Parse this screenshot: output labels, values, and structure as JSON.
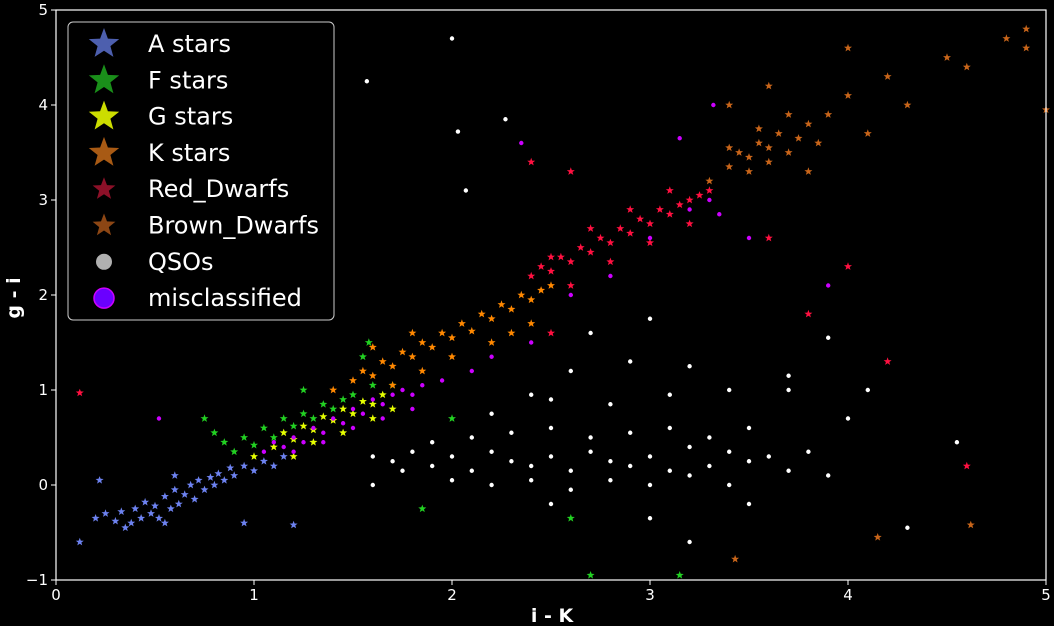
{
  "chart_data": {
    "type": "scatter",
    "title": "",
    "xlabel": "i - K",
    "ylabel": "g - i",
    "xlim": [
      0,
      5
    ],
    "ylim": [
      -1,
      5
    ],
    "x_ticks": [
      "0",
      "1",
      "2",
      "3",
      "4",
      "5"
    ],
    "y_ticks": [
      "−1",
      "0",
      "1",
      "2",
      "3",
      "4",
      "5"
    ],
    "grid": false,
    "legend_position": "top-left",
    "background": "#000000",
    "series": [
      {
        "name": "A stars",
        "color": "#6d82f0",
        "legend_color": "#4d5fae",
        "marker": "star",
        "points": [
          [
            0.12,
            -0.6
          ],
          [
            0.2,
            -0.35
          ],
          [
            0.25,
            -0.3
          ],
          [
            0.3,
            -0.38
          ],
          [
            0.33,
            -0.28
          ],
          [
            0.38,
            -0.4
          ],
          [
            0.4,
            -0.25
          ],
          [
            0.43,
            -0.35
          ],
          [
            0.45,
            -0.18
          ],
          [
            0.48,
            -0.3
          ],
          [
            0.5,
            -0.22
          ],
          [
            0.52,
            -0.35
          ],
          [
            0.55,
            -0.12
          ],
          [
            0.58,
            -0.25
          ],
          [
            0.6,
            -0.05
          ],
          [
            0.62,
            -0.2
          ],
          [
            0.65,
            -0.1
          ],
          [
            0.68,
            0.0
          ],
          [
            0.7,
            -0.15
          ],
          [
            0.72,
            0.05
          ],
          [
            0.75,
            -0.05
          ],
          [
            0.78,
            0.08
          ],
          [
            0.8,
            0.0
          ],
          [
            0.82,
            0.12
          ],
          [
            0.85,
            0.05
          ],
          [
            0.88,
            0.18
          ],
          [
            0.9,
            0.1
          ],
          [
            0.95,
            0.2
          ],
          [
            1.0,
            0.15
          ],
          [
            1.05,
            0.25
          ],
          [
            1.1,
            0.2
          ],
          [
            0.35,
            -0.45
          ],
          [
            0.55,
            -0.4
          ],
          [
            0.95,
            -0.4
          ],
          [
            1.2,
            -0.42
          ],
          [
            0.22,
            0.05
          ],
          [
            0.6,
            0.1
          ],
          [
            1.15,
            0.3
          ]
        ]
      },
      {
        "name": "F stars",
        "color": "#22d022",
        "legend_color": "#1a8f1a",
        "marker": "star",
        "points": [
          [
            0.8,
            0.55
          ],
          [
            0.85,
            0.45
          ],
          [
            0.9,
            0.35
          ],
          [
            0.95,
            0.5
          ],
          [
            1.0,
            0.42
          ],
          [
            1.05,
            0.6
          ],
          [
            1.1,
            0.5
          ],
          [
            1.15,
            0.7
          ],
          [
            1.2,
            0.62
          ],
          [
            1.25,
            0.75
          ],
          [
            1.3,
            0.7
          ],
          [
            1.35,
            0.85
          ],
          [
            1.4,
            0.8
          ],
          [
            1.45,
            0.9
          ],
          [
            1.5,
            0.95
          ],
          [
            0.75,
            0.7
          ],
          [
            1.6,
            1.05
          ],
          [
            1.55,
            1.35
          ],
          [
            1.58,
            1.5
          ],
          [
            1.7,
            1.05
          ],
          [
            2.6,
            -0.35
          ],
          [
            2.7,
            -0.95
          ],
          [
            3.15,
            -0.95
          ],
          [
            1.85,
            -0.25
          ],
          [
            2.0,
            0.7
          ],
          [
            1.25,
            1.0
          ]
        ]
      },
      {
        "name": "G stars",
        "color": "#e6ff00",
        "legend_color": "#ccdd00",
        "marker": "star",
        "points": [
          [
            1.1,
            0.4
          ],
          [
            1.15,
            0.55
          ],
          [
            1.2,
            0.48
          ],
          [
            1.25,
            0.62
          ],
          [
            1.3,
            0.58
          ],
          [
            1.35,
            0.72
          ],
          [
            1.4,
            0.68
          ],
          [
            1.45,
            0.8
          ],
          [
            1.5,
            0.75
          ],
          [
            1.55,
            0.88
          ],
          [
            1.6,
            0.85
          ],
          [
            1.65,
            0.95
          ],
          [
            1.2,
            0.3
          ],
          [
            1.3,
            0.45
          ],
          [
            1.45,
            0.55
          ],
          [
            1.6,
            0.7
          ],
          [
            1.7,
            0.8
          ],
          [
            1.0,
            0.3
          ]
        ]
      },
      {
        "name": "K stars",
        "color": "#ff8800",
        "legend_color": "#a85a14",
        "marker": "star",
        "points": [
          [
            1.4,
            1.0
          ],
          [
            1.5,
            1.1
          ],
          [
            1.55,
            1.2
          ],
          [
            1.6,
            1.15
          ],
          [
            1.65,
            1.3
          ],
          [
            1.7,
            1.25
          ],
          [
            1.75,
            1.4
          ],
          [
            1.8,
            1.35
          ],
          [
            1.85,
            1.5
          ],
          [
            1.9,
            1.45
          ],
          [
            1.95,
            1.6
          ],
          [
            2.0,
            1.55
          ],
          [
            2.05,
            1.7
          ],
          [
            2.1,
            1.62
          ],
          [
            2.15,
            1.8
          ],
          [
            2.2,
            1.75
          ],
          [
            2.25,
            1.9
          ],
          [
            2.3,
            1.85
          ],
          [
            2.35,
            2.0
          ],
          [
            2.4,
            1.95
          ],
          [
            2.45,
            2.05
          ],
          [
            1.85,
            1.2
          ],
          [
            2.0,
            1.35
          ],
          [
            2.2,
            1.5
          ],
          [
            2.3,
            1.6
          ],
          [
            2.4,
            1.7
          ],
          [
            1.7,
            1.05
          ],
          [
            2.5,
            2.1
          ],
          [
            1.6,
            1.45
          ],
          [
            1.8,
            1.6
          ]
        ]
      },
      {
        "name": "Red_Dwarfs",
        "color": "#ff1040",
        "legend_color": "#8c1028",
        "marker": "star",
        "points": [
          [
            2.4,
            2.2
          ],
          [
            2.45,
            2.3
          ],
          [
            2.5,
            2.25
          ],
          [
            2.55,
            2.4
          ],
          [
            2.6,
            2.35
          ],
          [
            2.65,
            2.5
          ],
          [
            2.7,
            2.45
          ],
          [
            2.75,
            2.6
          ],
          [
            2.8,
            2.55
          ],
          [
            2.85,
            2.7
          ],
          [
            2.9,
            2.65
          ],
          [
            2.95,
            2.8
          ],
          [
            3.0,
            2.75
          ],
          [
            3.05,
            2.9
          ],
          [
            3.1,
            2.85
          ],
          [
            3.15,
            2.95
          ],
          [
            3.2,
            3.0
          ],
          [
            3.25,
            3.05
          ],
          [
            3.3,
            3.1
          ],
          [
            2.6,
            2.1
          ],
          [
            2.8,
            2.35
          ],
          [
            3.0,
            2.55
          ],
          [
            3.2,
            2.75
          ],
          [
            2.5,
            2.4
          ],
          [
            2.7,
            2.7
          ],
          [
            2.9,
            2.9
          ],
          [
            3.1,
            3.1
          ],
          [
            0.12,
            0.97
          ],
          [
            2.5,
            1.6
          ],
          [
            3.6,
            2.6
          ],
          [
            4.0,
            2.3
          ],
          [
            4.6,
            0.2
          ],
          [
            4.2,
            1.3
          ],
          [
            3.8,
            1.8
          ],
          [
            2.6,
            3.3
          ],
          [
            2.4,
            3.4
          ]
        ]
      },
      {
        "name": "Brown_Dwarfs",
        "color": "#c8651a",
        "legend_color": "#8c4614",
        "marker": "star",
        "points": [
          [
            3.4,
            3.35
          ],
          [
            3.45,
            3.5
          ],
          [
            3.5,
            3.45
          ],
          [
            3.55,
            3.6
          ],
          [
            3.6,
            3.55
          ],
          [
            3.65,
            3.7
          ],
          [
            3.7,
            3.5
          ],
          [
            3.75,
            3.65
          ],
          [
            3.8,
            3.8
          ],
          [
            3.6,
            3.4
          ],
          [
            3.5,
            3.3
          ],
          [
            3.7,
            3.9
          ],
          [
            3.85,
            3.6
          ],
          [
            3.9,
            3.9
          ],
          [
            4.0,
            4.1
          ],
          [
            4.2,
            4.3
          ],
          [
            4.5,
            4.5
          ],
          [
            4.8,
            4.7
          ],
          [
            4.9,
            4.6
          ],
          [
            5.0,
            3.95
          ],
          [
            3.3,
            3.2
          ],
          [
            3.4,
            3.55
          ],
          [
            3.55,
            3.75
          ],
          [
            3.8,
            3.3
          ],
          [
            4.1,
            3.7
          ],
          [
            4.3,
            4.0
          ],
          [
            4.6,
            4.4
          ],
          [
            4.9,
            4.8
          ],
          [
            4.0,
            4.6
          ],
          [
            4.62,
            -0.42
          ],
          [
            3.43,
            -0.78
          ],
          [
            4.15,
            -0.55
          ],
          [
            3.4,
            4.0
          ],
          [
            3.6,
            4.2
          ]
        ]
      },
      {
        "name": "QSOs",
        "color": "#ffffff",
        "legend_color": "#b0b0b0",
        "marker": "circle",
        "points": [
          [
            1.6,
            0.3
          ],
          [
            1.7,
            0.25
          ],
          [
            1.8,
            0.35
          ],
          [
            1.9,
            0.2
          ],
          [
            2.0,
            0.3
          ],
          [
            2.1,
            0.15
          ],
          [
            2.2,
            0.35
          ],
          [
            2.3,
            0.25
          ],
          [
            2.4,
            0.2
          ],
          [
            2.5,
            0.3
          ],
          [
            2.6,
            0.15
          ],
          [
            2.7,
            0.35
          ],
          [
            2.8,
            0.25
          ],
          [
            2.9,
            0.2
          ],
          [
            3.0,
            0.3
          ],
          [
            3.1,
            0.15
          ],
          [
            3.2,
            0.4
          ],
          [
            3.3,
            0.2
          ],
          [
            3.4,
            0.35
          ],
          [
            3.5,
            0.25
          ],
          [
            3.6,
            0.3
          ],
          [
            3.7,
            0.15
          ],
          [
            3.8,
            0.35
          ],
          [
            1.9,
            0.45
          ],
          [
            2.1,
            0.5
          ],
          [
            2.3,
            0.55
          ],
          [
            2.5,
            0.6
          ],
          [
            2.7,
            0.5
          ],
          [
            2.9,
            0.55
          ],
          [
            3.1,
            0.6
          ],
          [
            3.3,
            0.5
          ],
          [
            3.5,
            0.6
          ],
          [
            2.0,
            0.05
          ],
          [
            2.2,
            0.0
          ],
          [
            2.4,
            0.05
          ],
          [
            2.6,
            -0.05
          ],
          [
            2.8,
            0.05
          ],
          [
            3.0,
            0.0
          ],
          [
            3.2,
            0.1
          ],
          [
            3.4,
            0.0
          ],
          [
            2.2,
            0.75
          ],
          [
            2.5,
            0.9
          ],
          [
            2.8,
            0.85
          ],
          [
            3.1,
            0.95
          ],
          [
            3.4,
            1.0
          ],
          [
            3.7,
            1.0
          ],
          [
            2.6,
            1.2
          ],
          [
            2.9,
            1.3
          ],
          [
            3.2,
            1.25
          ],
          [
            2.7,
            1.6
          ],
          [
            3.0,
            1.75
          ],
          [
            2.5,
            -0.2
          ],
          [
            3.0,
            -0.35
          ],
          [
            3.5,
            -0.2
          ],
          [
            2.0,
            4.7
          ],
          [
            1.57,
            4.25
          ],
          [
            2.27,
            3.85
          ],
          [
            2.03,
            3.72
          ],
          [
            2.07,
            3.1
          ],
          [
            4.55,
            0.45
          ],
          [
            4.3,
            -0.45
          ],
          [
            3.9,
            0.1
          ],
          [
            4.0,
            0.7
          ],
          [
            4.1,
            1.0
          ],
          [
            3.9,
            1.55
          ],
          [
            3.7,
            1.15
          ],
          [
            2.4,
            0.95
          ],
          [
            1.6,
            0.0
          ],
          [
            1.75,
            0.15
          ],
          [
            3.2,
            -0.6
          ]
        ]
      },
      {
        "name": "misclassified",
        "color": "#cc00ff",
        "legend_color": "#6a00ff",
        "marker": "circle",
        "points": [
          [
            1.05,
            0.35
          ],
          [
            1.1,
            0.45
          ],
          [
            1.15,
            0.4
          ],
          [
            1.2,
            0.5
          ],
          [
            1.25,
            0.45
          ],
          [
            1.3,
            0.6
          ],
          [
            1.35,
            0.55
          ],
          [
            1.4,
            0.7
          ],
          [
            1.45,
            0.65
          ],
          [
            1.5,
            0.8
          ],
          [
            1.55,
            0.75
          ],
          [
            1.6,
            0.9
          ],
          [
            1.65,
            0.85
          ],
          [
            1.7,
            0.95
          ],
          [
            1.75,
            1.0
          ],
          [
            1.8,
            0.95
          ],
          [
            1.85,
            1.05
          ],
          [
            1.2,
            0.35
          ],
          [
            1.35,
            0.45
          ],
          [
            1.5,
            0.6
          ],
          [
            1.65,
            0.7
          ],
          [
            1.8,
            0.8
          ],
          [
            1.95,
            1.1
          ],
          [
            2.1,
            1.2
          ],
          [
            2.2,
            1.35
          ],
          [
            2.4,
            1.5
          ],
          [
            2.6,
            2.0
          ],
          [
            2.8,
            2.2
          ],
          [
            3.0,
            2.6
          ],
          [
            3.2,
            2.9
          ],
          [
            3.3,
            3.0
          ],
          [
            3.35,
            2.85
          ],
          [
            3.5,
            2.6
          ],
          [
            3.9,
            2.1
          ],
          [
            2.35,
            3.6
          ],
          [
            3.15,
            3.65
          ],
          [
            0.52,
            0.7
          ],
          [
            3.32,
            4.0
          ]
        ]
      }
    ]
  }
}
